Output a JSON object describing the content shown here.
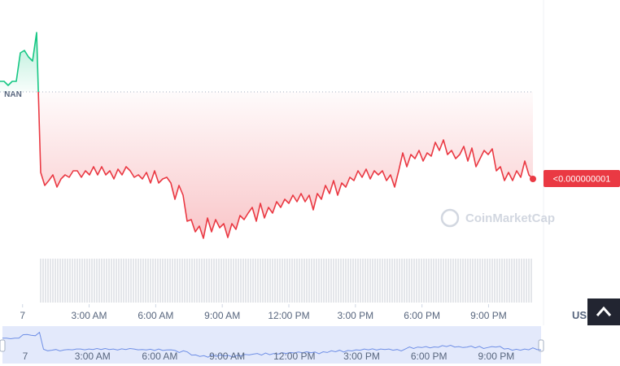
{
  "chart_data": {
    "type": "line",
    "baseline": 187,
    "baseline_label": "NAN",
    "last_price_label": "<0.000000001",
    "watermark": "CoinMarketCap",
    "currency": "USD",
    "up_color": "#16c784",
    "down_color": "#ea3943",
    "xlim": [
      -61,
      1380
    ],
    "ylim": [
      0,
      265
    ],
    "xticks": [
      {
        "value": 0,
        "label": "7"
      },
      {
        "value": 180,
        "label": "3:00 AM"
      },
      {
        "value": 360,
        "label": "6:00 AM"
      },
      {
        "value": 540,
        "label": "9:00 AM"
      },
      {
        "value": 720,
        "label": "12:00 PM"
      },
      {
        "value": 900,
        "label": "3:00 PM"
      },
      {
        "value": 1080,
        "label": "6:00 PM"
      },
      {
        "value": 1260,
        "label": "9:00 PM"
      }
    ],
    "x": [
      -61,
      -50,
      -39,
      -28,
      -17,
      -6,
      5,
      16,
      27,
      38,
      49,
      60,
      71,
      82,
      93,
      104,
      115,
      126,
      137,
      148,
      159,
      170,
      181,
      192,
      203,
      214,
      225,
      236,
      247,
      258,
      269,
      280,
      291,
      302,
      313,
      324,
      335,
      346,
      357,
      368,
      379,
      390,
      401,
      412,
      423,
      434,
      445,
      456,
      467,
      478,
      489,
      500,
      511,
      522,
      533,
      544,
      555,
      566,
      577,
      588,
      599,
      610,
      621,
      632,
      643,
      654,
      665,
      676,
      687,
      698,
      709,
      720,
      731,
      742,
      753,
      764,
      775,
      786,
      797,
      808,
      819,
      830,
      841,
      852,
      863,
      874,
      885,
      896,
      907,
      918,
      929,
      940,
      951,
      962,
      973,
      984,
      995,
      1006,
      1017,
      1028,
      1039,
      1050,
      1061,
      1072,
      1083,
      1094,
      1105,
      1116,
      1127,
      1138,
      1149,
      1160,
      1171,
      1182,
      1193,
      1204,
      1215,
      1226,
      1237,
      1248,
      1259,
      1270,
      1281,
      1292,
      1303,
      1314,
      1325,
      1336,
      1347,
      1358,
      1369,
      1380
    ],
    "values": [
      200,
      200,
      195,
      200,
      200,
      235,
      238,
      230,
      225,
      260,
      88,
      72,
      78,
      85,
      70,
      80,
      85,
      82,
      90,
      90,
      82,
      90,
      85,
      95,
      85,
      95,
      85,
      90,
      80,
      92,
      85,
      95,
      90,
      82,
      85,
      80,
      88,
      75,
      90,
      75,
      80,
      82,
      75,
      55,
      72,
      60,
      28,
      30,
      15,
      22,
      7,
      32,
      15,
      30,
      20,
      25,
      8,
      25,
      18,
      35,
      30,
      38,
      45,
      28,
      50,
      32,
      45,
      38,
      52,
      45,
      55,
      50,
      60,
      52,
      62,
      52,
      60,
      42,
      62,
      55,
      72,
      62,
      78,
      60,
      75,
      70,
      82,
      78,
      90,
      82,
      92,
      80,
      90,
      85,
      90,
      78,
      85,
      70,
      90,
      112,
      95,
      110,
      105,
      115,
      102,
      112,
      108,
      125,
      115,
      128,
      110,
      115,
      105,
      110,
      120,
      102,
      118,
      95,
      105,
      115,
      110,
      117,
      90,
      95,
      78,
      88,
      78,
      90,
      82,
      102,
      85,
      80
    ]
  }
}
